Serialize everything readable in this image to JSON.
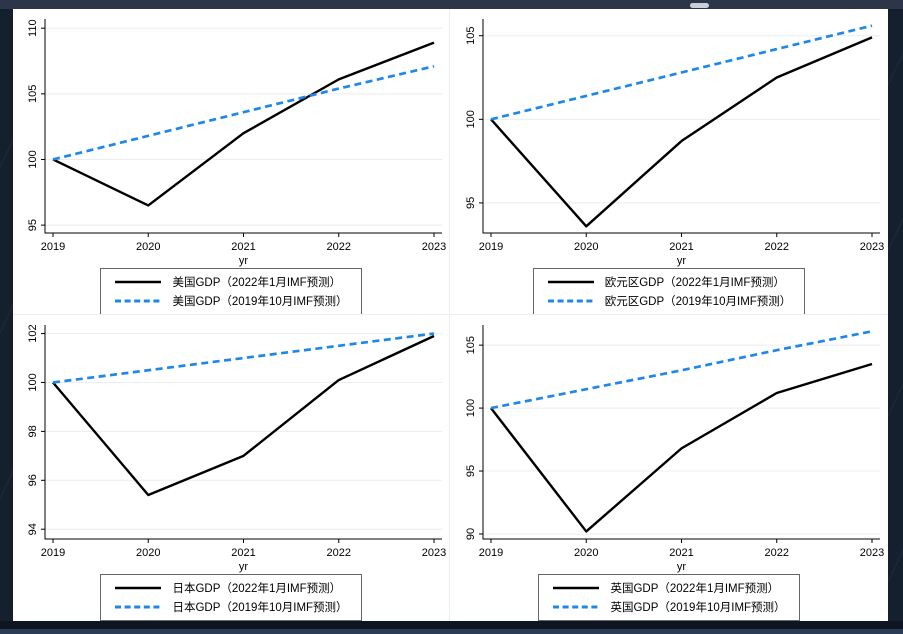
{
  "window": {
    "background_color": "#15202e",
    "top_bar_color": "#2c3648",
    "panel_color": "#ffffff"
  },
  "colors": {
    "solid_series": "#000000",
    "dashed_series": "#1e87e8",
    "gridline": "#e8eef4",
    "axis": "#000000",
    "tick_label": "#000000",
    "legend_border": "#666666"
  },
  "chart_data": [
    {
      "type": "line",
      "region": "美国",
      "xlabel": "yr",
      "x": [
        2019,
        2020,
        2021,
        2022,
        2023
      ],
      "xtick_labels": [
        "2019",
        "2020",
        "2021",
        "2022",
        "2023"
      ],
      "ytick_values": [
        95,
        100,
        105,
        110
      ],
      "ytick_labels": [
        "95",
        "100",
        "105",
        "110"
      ],
      "ylim": [
        94.4,
        110.7
      ],
      "grid": true,
      "legend_position": "bottom",
      "series": [
        {
          "name": "美国GDP（2022年1月IMF预测）",
          "style": "solid",
          "values": [
            100,
            96.5,
            102.0,
            106.1,
            108.9
          ]
        },
        {
          "name": "美国GDP（2019年10月IMF预测）",
          "style": "dashed",
          "values": [
            100,
            101.8,
            103.6,
            105.4,
            107.1
          ]
        }
      ]
    },
    {
      "type": "line",
      "region": "欧元区",
      "xlabel": "yr",
      "x": [
        2019,
        2020,
        2021,
        2022,
        2023
      ],
      "xtick_labels": [
        "2019",
        "2020",
        "2021",
        "2022",
        "2023"
      ],
      "ytick_values": [
        95,
        100,
        105
      ],
      "ytick_labels": [
        "95",
        "100",
        "105"
      ],
      "ylim": [
        93.2,
        106.0
      ],
      "grid": true,
      "legend_position": "bottom",
      "series": [
        {
          "name": "欧元区GDP（2022年1月IMF预测）",
          "style": "solid",
          "values": [
            100,
            93.6,
            98.7,
            102.5,
            104.9
          ]
        },
        {
          "name": "欧元区GDP（2019年10月IMF预测）",
          "style": "dashed",
          "values": [
            100,
            101.4,
            102.8,
            104.2,
            105.6
          ]
        }
      ]
    },
    {
      "type": "line",
      "region": "日本",
      "xlabel": "yr",
      "x": [
        2019,
        2020,
        2021,
        2022,
        2023
      ],
      "xtick_labels": [
        "2019",
        "2020",
        "2021",
        "2022",
        "2023"
      ],
      "ytick_values": [
        94,
        96,
        98,
        100,
        102
      ],
      "ytick_labels": [
        "94",
        "96",
        "98",
        "100",
        "102"
      ],
      "ylim": [
        93.6,
        102.35
      ],
      "grid": true,
      "legend_position": "bottom",
      "series": [
        {
          "name": "日本GDP（2022年1月IMF预测）",
          "style": "solid",
          "values": [
            100,
            95.4,
            97.0,
            100.1,
            101.9
          ]
        },
        {
          "name": "日本GDP（2019年10月IMF预测）",
          "style": "dashed",
          "values": [
            100,
            100.5,
            101.0,
            101.5,
            102.0
          ]
        }
      ]
    },
    {
      "type": "line",
      "region": "英国",
      "xlabel": "yr",
      "x": [
        2019,
        2020,
        2021,
        2022,
        2023
      ],
      "xtick_labels": [
        "2019",
        "2020",
        "2021",
        "2022",
        "2023"
      ],
      "ytick_values": [
        90,
        95,
        100,
        105
      ],
      "ytick_labels": [
        "90",
        "95",
        "100",
        "105"
      ],
      "ylim": [
        89.6,
        106.6
      ],
      "grid": true,
      "legend_position": "bottom",
      "series": [
        {
          "name": "英国GDP（2022年1月IMF预测）",
          "style": "solid",
          "values": [
            100,
            90.2,
            96.8,
            101.2,
            103.5
          ]
        },
        {
          "name": "英国GDP（2019年10月IMF预测）",
          "style": "dashed",
          "values": [
            100,
            101.5,
            103.0,
            104.6,
            106.1
          ]
        }
      ]
    }
  ]
}
